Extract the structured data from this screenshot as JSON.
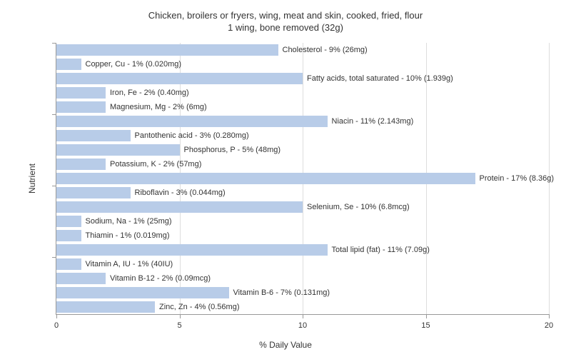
{
  "chart": {
    "type": "bar",
    "orientation": "horizontal",
    "title_line1": "Chicken, broilers or fryers, wing, meat and skin, cooked, fried, flour",
    "title_line2": "1 wing, bone removed (32g)",
    "title_fontsize": 13,
    "xlabel": "% Daily Value",
    "ylabel": "Nutrient",
    "label_fontsize": 12,
    "xlim": [
      0,
      20
    ],
    "xtick_step": 5,
    "xticks": [
      0,
      5,
      10,
      15,
      20
    ],
    "bar_color": "#b8cce8",
    "background_color": "#ffffff",
    "grid_color": "#dddddd",
    "axis_color": "#999999",
    "text_color": "#333333",
    "bar_label_fontsize": 11,
    "tick_fontsize": 11,
    "y_major_ticks_every": 5,
    "bars": [
      {
        "label": "Cholesterol - 9% (26mg)",
        "value": 9
      },
      {
        "label": "Copper, Cu - 1% (0.020mg)",
        "value": 1
      },
      {
        "label": "Fatty acids, total saturated - 10% (1.939g)",
        "value": 10
      },
      {
        "label": "Iron, Fe - 2% (0.40mg)",
        "value": 2
      },
      {
        "label": "Magnesium, Mg - 2% (6mg)",
        "value": 2
      },
      {
        "label": "Niacin - 11% (2.143mg)",
        "value": 11
      },
      {
        "label": "Pantothenic acid - 3% (0.280mg)",
        "value": 3
      },
      {
        "label": "Phosphorus, P - 5% (48mg)",
        "value": 5
      },
      {
        "label": "Potassium, K - 2% (57mg)",
        "value": 2
      },
      {
        "label": "Protein - 17% (8.36g)",
        "value": 17
      },
      {
        "label": "Riboflavin - 3% (0.044mg)",
        "value": 3
      },
      {
        "label": "Selenium, Se - 10% (6.8mcg)",
        "value": 10
      },
      {
        "label": "Sodium, Na - 1% (25mg)",
        "value": 1
      },
      {
        "label": "Thiamin - 1% (0.019mg)",
        "value": 1
      },
      {
        "label": "Total lipid (fat) - 11% (7.09g)",
        "value": 11
      },
      {
        "label": "Vitamin A, IU - 1% (40IU)",
        "value": 1
      },
      {
        "label": "Vitamin B-12 - 2% (0.09mcg)",
        "value": 2
      },
      {
        "label": "Vitamin B-6 - 7% (0.131mg)",
        "value": 7
      },
      {
        "label": "Zinc, Zn - 4% (0.56mg)",
        "value": 4
      }
    ]
  }
}
